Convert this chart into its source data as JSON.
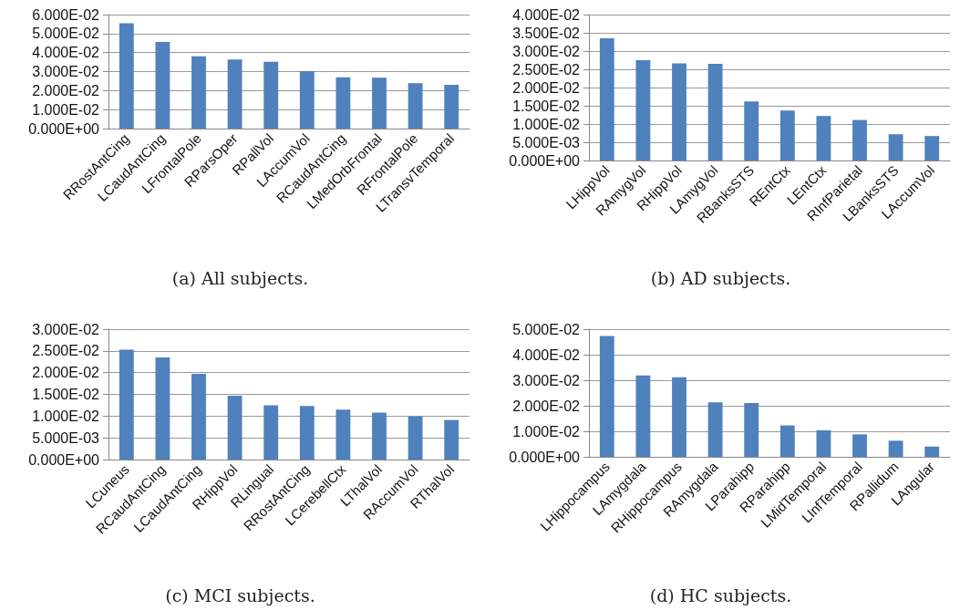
{
  "chart_data": [
    {
      "type": "bar",
      "title": "(a) All subjects.",
      "categories": [
        "RRostAntCing",
        "LCaudAntCing",
        "LFrontalPole",
        "RParsOper",
        "RPallVol",
        "LAccumVol",
        "RCaudAntCing",
        "LMedOrbFrontal",
        "RFrontalPole",
        "LTransvTemporal"
      ],
      "values": [
        0.0555,
        0.0456,
        0.038,
        0.0364,
        0.0352,
        0.0303,
        0.027,
        0.0268,
        0.0239,
        0.023
      ],
      "color": "#4f81bd",
      "ylim": [
        0,
        0.06
      ],
      "yticks": [
        {
          "value": 0,
          "label": "0.000E+00"
        },
        {
          "value": 0.01,
          "label": "1.000E-02"
        },
        {
          "value": 0.02,
          "label": "2.000E-02"
        },
        {
          "value": 0.03,
          "label": "3.000E-02"
        },
        {
          "value": 0.04,
          "label": "4.000E-02"
        },
        {
          "value": 0.05,
          "label": "5.000E-02"
        },
        {
          "value": 0.06,
          "label": "6.000E-02"
        }
      ],
      "grid": "y"
    },
    {
      "type": "bar",
      "title": "(b) AD subjects.",
      "categories": [
        "LHippVol",
        "RAmygVol",
        "RHippVol",
        "LAmygVol",
        "RBanksSTS",
        "REntCtx",
        "LEntCtx",
        "RInfParietal",
        "LBanksSTS",
        "LAccumVol"
      ],
      "values": [
        0.0335,
        0.0275,
        0.0266,
        0.0265,
        0.0162,
        0.0137,
        0.0122,
        0.0111,
        0.0072,
        0.0067
      ],
      "color": "#4f81bd",
      "ylim": [
        0,
        0.04
      ],
      "yticks": [
        {
          "value": 0,
          "label": "0.000E+00"
        },
        {
          "value": 0.005,
          "label": "5.000E-03"
        },
        {
          "value": 0.01,
          "label": "1.000E-02"
        },
        {
          "value": 0.015,
          "label": "1.500E-02"
        },
        {
          "value": 0.02,
          "label": "2.000E-02"
        },
        {
          "value": 0.025,
          "label": "2.500E-02"
        },
        {
          "value": 0.03,
          "label": "3.000E-02"
        },
        {
          "value": 0.035,
          "label": "3.500E-02"
        },
        {
          "value": 0.04,
          "label": "4.000E-02"
        }
      ],
      "grid": "y"
    },
    {
      "type": "bar",
      "title": "(c) MCI subjects.",
      "categories": [
        "LCuneus",
        "RCaudAntCing",
        "LCaudAntCing",
        "RHippVol",
        "RLingual",
        "RRostAntCing",
        "LCerebellCtx",
        "LThalVol",
        "RAccumVol",
        "RThalVol"
      ],
      "values": [
        0.0253,
        0.0235,
        0.0197,
        0.0147,
        0.0125,
        0.0123,
        0.0115,
        0.0108,
        0.0099,
        0.0091
      ],
      "color": "#4f81bd",
      "ylim": [
        0,
        0.03
      ],
      "yticks": [
        {
          "value": 0,
          "label": "0.000E+00"
        },
        {
          "value": 0.005,
          "label": "5.000E-03"
        },
        {
          "value": 0.01,
          "label": "1.000E-02"
        },
        {
          "value": 0.015,
          "label": "1.500E-02"
        },
        {
          "value": 0.02,
          "label": "2.000E-02"
        },
        {
          "value": 0.025,
          "label": "2.500E-02"
        },
        {
          "value": 0.03,
          "label": "3.000E-02"
        }
      ],
      "grid": "y"
    },
    {
      "type": "bar",
      "title": "(d) HC subjects.",
      "categories": [
        "LHippocampus",
        "LAmygdala",
        "RHippocampus",
        "RAmygdala",
        "LParahipp",
        "RParahipp",
        "LMidTemporal",
        "LInfTemporal",
        "RPallidum",
        "LAngular"
      ],
      "values": [
        0.0473,
        0.0319,
        0.0312,
        0.0213,
        0.0211,
        0.0123,
        0.0104,
        0.0088,
        0.0063,
        0.004
      ],
      "color": "#4f81bd",
      "ylim": [
        0,
        0.05
      ],
      "yticks": [
        {
          "value": 0,
          "label": "0.000E+00"
        },
        {
          "value": 0.01,
          "label": "1.000E-02"
        },
        {
          "value": 0.02,
          "label": "2.000E-02"
        },
        {
          "value": 0.03,
          "label": "3.000E-02"
        },
        {
          "value": 0.04,
          "label": "4.000E-02"
        },
        {
          "value": 0.05,
          "label": "5.000E-02"
        }
      ],
      "grid": "y"
    }
  ]
}
